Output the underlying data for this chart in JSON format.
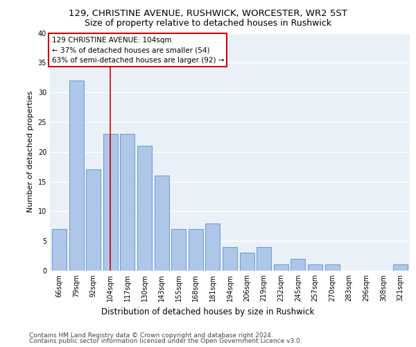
{
  "title1": "129, CHRISTINE AVENUE, RUSHWICK, WORCESTER, WR2 5ST",
  "title2": "Size of property relative to detached houses in Rushwick",
  "xlabel": "Distribution of detached houses by size in Rushwick",
  "ylabel": "Number of detached properties",
  "categories": [
    "66sqm",
    "79sqm",
    "92sqm",
    "104sqm",
    "117sqm",
    "130sqm",
    "143sqm",
    "155sqm",
    "168sqm",
    "181sqm",
    "194sqm",
    "206sqm",
    "219sqm",
    "232sqm",
    "245sqm",
    "257sqm",
    "270sqm",
    "283sqm",
    "296sqm",
    "308sqm",
    "321sqm"
  ],
  "values": [
    7,
    32,
    17,
    23,
    23,
    21,
    16,
    7,
    7,
    8,
    4,
    3,
    4,
    1,
    2,
    1,
    1,
    0,
    0,
    0,
    1
  ],
  "bar_color": "#aec6e8",
  "bar_edge_color": "#5b8fc9",
  "vline_x_index": 3,
  "vline_color": "#cc0000",
  "annotation_lines": [
    "129 CHRISTINE AVENUE: 104sqm",
    "← 37% of detached houses are smaller (54)",
    "63% of semi-detached houses are larger (92) →"
  ],
  "annotation_box_color": "#cc0000",
  "ylim": [
    0,
    40
  ],
  "yticks": [
    0,
    5,
    10,
    15,
    20,
    25,
    30,
    35,
    40
  ],
  "footnote1": "Contains HM Land Registry data © Crown copyright and database right 2024.",
  "footnote2": "Contains public sector information licensed under the Open Government Licence v3.0.",
  "bg_color": "#eaf0f8",
  "grid_color": "#ffffff",
  "title1_fontsize": 9.5,
  "title2_fontsize": 9,
  "xlabel_fontsize": 8.5,
  "ylabel_fontsize": 8,
  "tick_fontsize": 7,
  "annot_fontsize": 7.5,
  "footnote_fontsize": 6.5
}
